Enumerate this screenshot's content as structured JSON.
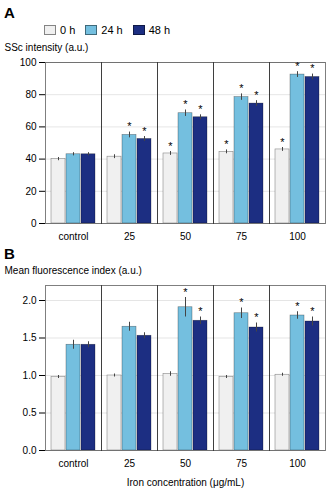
{
  "chart_data": [
    {
      "type": "bar",
      "title": "A",
      "ylabel": "SSc intensity (a.u.)",
      "categories": [
        "control",
        "25",
        "50",
        "75",
        "100"
      ],
      "series": [
        {
          "name": "0 h",
          "color": "#F0F0F0",
          "values": [
            40.0,
            41.5,
            43.5,
            44.5,
            46.0
          ],
          "errors": [
            1.0,
            1.2,
            1.2,
            1.2,
            1.2
          ],
          "annotations": [
            null,
            null,
            "*",
            "*",
            "*"
          ]
        },
        {
          "name": "24 h",
          "color": "#74BFDF",
          "values": [
            43.0,
            55.0,
            68.5,
            78.5,
            92.5
          ],
          "errors": [
            1.0,
            1.8,
            2.0,
            2.0,
            1.8
          ],
          "annotations": [
            null,
            "*",
            "*",
            "*",
            "*"
          ]
        },
        {
          "name": "48 h",
          "color": "#1C2E82",
          "values": [
            43.0,
            52.5,
            66.0,
            74.5,
            91.0
          ],
          "errors": [
            1.0,
            1.5,
            1.5,
            1.8,
            1.8
          ],
          "annotations": [
            null,
            "*",
            "*",
            "*",
            "*"
          ]
        }
      ],
      "ylim": [
        0,
        100
      ],
      "yticks": [
        0,
        20,
        40,
        60,
        80,
        100
      ],
      "grid": true,
      "legend": "upper left"
    },
    {
      "type": "bar",
      "title": "B",
      "ylabel": "Mean fluorescence index (a.u.)",
      "xlabel": "Iron concentration (μg/mL)",
      "categories": [
        "control",
        "25",
        "50",
        "75",
        "100"
      ],
      "series": [
        {
          "name": "0 h",
          "color": "#F0F0F0",
          "values": [
            0.98,
            1.0,
            1.02,
            0.98,
            1.01
          ],
          "errors": [
            0.02,
            0.02,
            0.03,
            0.02,
            0.02
          ],
          "annotations": [
            null,
            null,
            null,
            null,
            null
          ]
        },
        {
          "name": "24 h",
          "color": "#74BFDF",
          "values": [
            1.41,
            1.65,
            1.91,
            1.83,
            1.8
          ],
          "errors": [
            0.06,
            0.06,
            0.13,
            0.07,
            0.05
          ],
          "annotations": [
            null,
            null,
            "*",
            "*",
            "*"
          ]
        },
        {
          "name": "48 h",
          "color": "#1C2E82",
          "values": [
            1.41,
            1.53,
            1.73,
            1.64,
            1.72
          ],
          "errors": [
            0.04,
            0.04,
            0.05,
            0.06,
            0.06
          ],
          "annotations": [
            null,
            null,
            "*",
            "*",
            "*"
          ]
        }
      ],
      "ylim": [
        0.0,
        2.2
      ],
      "yticks": [
        {
          "value": 0,
          "label": "0.0"
        },
        0.5,
        {
          "value": 1,
          "label": "1.0"
        },
        1.5,
        {
          "value": 2,
          "label": "2.0"
        }
      ],
      "grid": true
    }
  ]
}
